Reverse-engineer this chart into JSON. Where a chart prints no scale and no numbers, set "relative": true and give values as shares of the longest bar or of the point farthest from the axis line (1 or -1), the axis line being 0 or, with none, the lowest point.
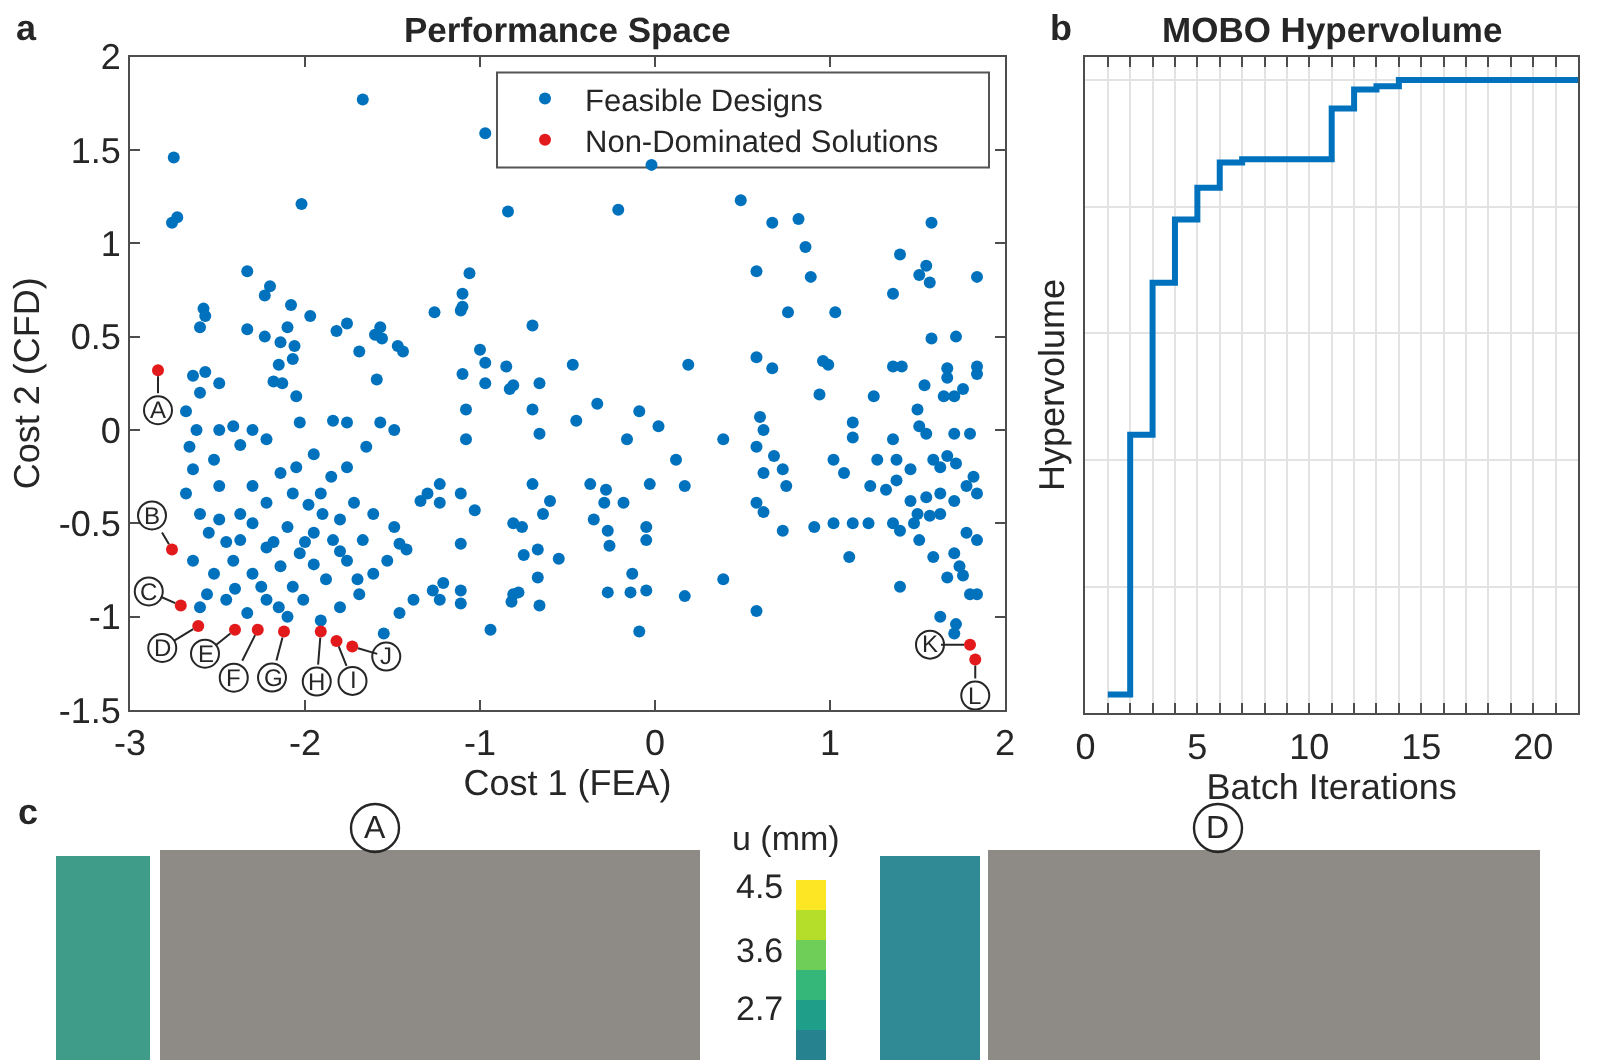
{
  "chart_data": [
    {
      "type": "scatter",
      "title": "Performance Space",
      "xlabel": "Cost 1 (FEA)",
      "ylabel": "Cost 2 (CFD)",
      "xlim": [
        -3,
        2
      ],
      "xticks": [
        -3,
        -2,
        -1,
        0,
        1,
        2
      ],
      "ylim": [
        -1.5,
        2
      ],
      "yticks": [
        -1.5,
        -1,
        -0.5,
        0,
        0.5,
        1,
        1.5,
        2
      ],
      "marker": "circle",
      "legend": "top right",
      "series": [
        {
          "name": "Feasible Designs",
          "color": "#0072bd",
          "x": [
            -1.67,
            -2.75,
            -2.76,
            -2.73,
            -2.02,
            -0.97,
            -0.84,
            -0.02,
            -0.21,
            0.49,
            0.67,
            0.82,
            0.86,
            0.58,
            0.89,
            1.03,
            0.76,
            1.58,
            1.4,
            1.55,
            1.51,
            1.57,
            1.36,
            1.84,
            1.72,
            1.58,
            -2.33,
            -2.2,
            -2.23,
            -1.06,
            -1.1,
            -1.11,
            -1.26,
            -2.58,
            -2.57,
            -2.6,
            -2.33,
            -2.08,
            -1.97,
            -2.1,
            -2.06,
            -2.23,
            -2.14,
            -1.82,
            -1.76,
            -1.69,
            -1.57,
            -1.6,
            -1.56,
            -1.47,
            -1.44,
            -2.07,
            -2.15,
            -2.18,
            -2.13,
            -2.64,
            -2.57,
            -0.7,
            -1.0,
            -0.97,
            -0.85,
            -1.1,
            -0.97,
            -0.83,
            -1.59,
            -2.05,
            -1.1,
            -0.47,
            0.19,
            0.58,
            0.67,
            0.96,
            0.99,
            1.36,
            1.41,
            1.67,
            1.84,
            1.84,
            1.67,
            1.54,
            1.76,
            1.65,
            1.71,
            1.25,
            0.94,
            -0.81,
            -0.66,
            -2.6,
            -2.49,
            -2.68,
            -2.62,
            -2.49,
            -2.41,
            -2.3,
            -2.37,
            -2.66,
            -2.52,
            -2.64,
            -2.22,
            -2.03,
            -1.84,
            -1.76,
            -1.57,
            -1.49,
            -1.65,
            -1.95,
            -1.76,
            -2.14,
            -2.3,
            -2.49,
            -2.68,
            -2.6,
            -2.49,
            -2.37,
            -2.22,
            -2.07,
            -1.91,
            -1.72,
            -1.61,
            -1.49,
            -1.46,
            -1.42,
            -1.53,
            -1.61,
            -1.69,
            -1.8,
            -1.91,
            -2.01,
            -2.1,
            -2.22,
            -2.33,
            -2.45,
            -2.56,
            -2.52,
            -2.64,
            -2.41,
            -2.3,
            -2.14,
            -2.03,
            -1.95,
            -1.84,
            -1.76,
            -1.88,
            -2.07,
            -2.22,
            -2.37,
            -2.1,
            -1.8,
            -1.67,
            -1.38,
            -1.46,
            -1.55,
            -1.34,
            -1.3,
            -1.23,
            -1.11,
            -1.03,
            -1.23,
            -1.27,
            -1.21,
            -1.11,
            -1.11,
            -1.23,
            -0.94,
            -0.81,
            -0.76,
            -0.81,
            -1.11,
            -2.0,
            -1.95,
            -2.25,
            -2.45,
            -2.55,
            -1.9,
            -2.15,
            -2.4,
            -1.7,
            -2.3,
            -1.85,
            -2.05,
            -2.6,
            -1.98,
            -2.18,
            -1.8,
            -1.08,
            -1.08,
            -0.7,
            -0.66,
            -0.45,
            -0.33,
            -0.16,
            -0.09,
            0.02,
            -0.7,
            -0.6,
            -0.64,
            -0.75,
            -0.67,
            -0.55,
            -0.67,
            -0.78,
            -0.82,
            -0.66,
            -0.37,
            -0.28,
            -0.29,
            -0.18,
            -0.35,
            -0.27,
            -0.26,
            -0.05,
            -0.05,
            -0.03,
            -0.27,
            -0.14,
            -0.13,
            -0.05,
            -0.09,
            0.17,
            0.39,
            0.39,
            0.12,
            0.17,
            0.58,
            0.58,
            0.62,
            0.73,
            0.6,
            0.62,
            0.58,
            0.68,
            0.73,
            0.75,
            0.62,
            0.91,
            1.02,
            1.11,
            1.13,
            1.22,
            1.02,
            1.08,
            1.13,
            1.13,
            1.23,
            1.27,
            1.32,
            1.36,
            1.36,
            1.4,
            1.38,
            1.46,
            1.5,
            1.51,
            1.55,
            1.59,
            1.71,
            1.8,
            1.72,
            1.78,
            1.46,
            1.55,
            1.63,
            1.71,
            1.4,
            1.48,
            1.51,
            1.59,
            1.71,
            1.74,
            1.84,
            1.78,
            1.8,
            1.84,
            1.72,
            1.71,
            1.63,
            1.67,
            1.76,
            1.63,
            1.57,
            1.5,
            1.38,
            1.84,
            1.82,
            1.67,
            1.63
          ],
          "values": [
            1.77,
            1.46,
            1.11,
            1.14,
            1.21,
            1.59,
            1.17,
            1.42,
            1.18,
            1.23,
            1.11,
            1.13,
            0.98,
            0.85,
            0.82,
            0.63,
            0.63,
            1.11,
            0.94,
            0.88,
            0.83,
            0.79,
            0.73,
            0.82,
            0.5,
            0.49,
            0.85,
            0.77,
            0.72,
            0.84,
            0.73,
            0.64,
            0.63,
            0.65,
            0.61,
            0.55,
            0.54,
            0.67,
            0.61,
            0.55,
            0.45,
            0.5,
            0.47,
            0.53,
            0.57,
            0.42,
            0.55,
            0.51,
            0.49,
            0.45,
            0.42,
            0.38,
            0.35,
            0.26,
            0.25,
            0.29,
            0.31,
            0.56,
            0.43,
            0.36,
            0.34,
            0.3,
            0.25,
            0.22,
            0.27,
            0.18,
            0.66,
            0.35,
            0.35,
            0.39,
            0.33,
            0.37,
            0.35,
            0.34,
            0.34,
            0.33,
            0.34,
            0.3,
            0.28,
            0.24,
            0.22,
            0.18,
            0.18,
            0.18,
            0.19,
            0.24,
            0.25,
            0.2,
            0.25,
            0.1,
            0.0,
            0.0,
            0.02,
            0.0,
            -0.08,
            -0.09,
            -0.16,
            -0.21,
            -0.05,
            0.04,
            0.05,
            0.04,
            0.04,
            0.0,
            -0.09,
            -0.13,
            -0.2,
            -0.23,
            -0.3,
            -0.3,
            -0.34,
            -0.45,
            -0.48,
            -0.45,
            -0.39,
            -0.34,
            -0.34,
            -0.39,
            -0.45,
            -0.52,
            -0.61,
            -0.64,
            -0.7,
            -0.77,
            -0.88,
            -0.95,
            -1.02,
            -0.91,
            -1.0,
            -0.91,
            -0.98,
            -0.91,
            -0.88,
            -0.77,
            -0.7,
            -0.7,
            -0.77,
            -0.73,
            -0.66,
            -0.55,
            -0.59,
            -0.7,
            -0.8,
            -0.84,
            -0.63,
            -0.59,
            -0.52,
            -0.48,
            -0.59,
            -0.91,
            -0.98,
            -1.09,
            -0.38,
            -0.34,
            -0.39,
            -0.34,
            -0.43,
            -0.29,
            -0.86,
            -0.82,
            -0.86,
            -0.93,
            -0.91,
            -1.07,
            -0.5,
            -0.52,
            -0.88,
            -0.61,
            -0.6,
            -0.72,
            -0.84,
            -0.6,
            -0.55,
            -0.45,
            -0.95,
            -0.85,
            -0.8,
            -0.5,
            -0.25,
            -0.2,
            -0.95,
            -0.4,
            -0.6,
            -0.65,
            0.11,
            -0.05,
            0.11,
            -0.02,
            0.05,
            0.14,
            -0.05,
            0.1,
            0.02,
            -0.29,
            -0.38,
            -0.45,
            -0.67,
            -0.64,
            -0.69,
            -0.79,
            -0.87,
            -0.92,
            -0.94,
            -0.29,
            -0.32,
            -0.39,
            -0.39,
            -0.48,
            -0.54,
            -0.62,
            -0.52,
            -0.59,
            -0.29,
            -0.87,
            -0.87,
            -0.77,
            -0.86,
            -1.08,
            -0.89,
            -0.8,
            -0.05,
            -0.16,
            -0.3,
            -0.97,
            -0.39,
            -0.44,
            -0.54,
            0.07,
            0.0,
            -0.09,
            -0.14,
            -0.21,
            -0.3,
            -0.23,
            -0.52,
            -0.5,
            -0.68,
            -0.5,
            -0.5,
            -0.16,
            -0.23,
            -0.04,
            0.04,
            -0.3,
            -0.16,
            -0.32,
            -0.05,
            -0.5,
            -0.84,
            -0.27,
            -0.21,
            0.11,
            0.02,
            -0.02,
            -0.16,
            -0.02,
            -0.02,
            -0.18,
            -0.3,
            -0.38,
            -0.36,
            -0.34,
            -0.38,
            -0.54,
            -0.5,
            -0.59,
            -0.68,
            -0.66,
            -0.73,
            -0.59,
            -0.55,
            -0.88,
            -0.88,
            -1.04,
            -1.09,
            -1.0,
            -0.79,
            -0.78,
            -0.45,
            -0.46,
            -0.45,
            -0.16,
            -0.34,
            -0.25,
            -0.14,
            -0.2
          ]
        },
        {
          "name": "Non-Dominated Solutions",
          "color": "#e31a1c",
          "x": [
            -2.84,
            -2.76,
            -2.71,
            -2.61,
            -2.4,
            -2.27,
            -2.12,
            -1.91,
            -1.82,
            -1.73,
            1.8,
            1.83
          ],
          "values": [
            0.32,
            -0.64,
            -0.94,
            -1.05,
            -1.07,
            -1.07,
            -1.08,
            -1.08,
            -1.13,
            -1.16,
            -1.15,
            -1.23
          ]
        }
      ],
      "annotations": [
        "a",
        {
          "text": "A",
          "x": -2.84,
          "y": 0.32
        },
        {
          "text": "B",
          "x": -2.76,
          "y": -0.64
        },
        {
          "text": "C",
          "x": -2.71,
          "y": -0.94
        },
        {
          "text": "D",
          "x": -2.61,
          "y": -1.05
        },
        {
          "text": "E",
          "x": -2.4,
          "y": -1.07
        },
        {
          "text": "F",
          "x": -2.27,
          "y": -1.07
        },
        {
          "text": "G",
          "x": -2.12,
          "y": -1.08
        },
        {
          "text": "H",
          "x": -1.91,
          "y": -1.08
        },
        {
          "text": "I",
          "x": -1.82,
          "y": -1.13
        },
        {
          "text": "J",
          "x": -1.73,
          "y": -1.16
        },
        {
          "text": "K",
          "x": 1.8,
          "y": -1.15
        },
        {
          "text": "L",
          "x": 1.83,
          "y": -1.23
        }
      ]
    },
    {
      "type": "step",
      "title": "MOBO Hypervolume",
      "xlabel": "Batch Iterations",
      "ylabel": "Hypervolume",
      "relative": true,
      "grid": true,
      "color": "#0072bd",
      "x": [
        1,
        2,
        3,
        4,
        5,
        6,
        7,
        8,
        9,
        10,
        11,
        12,
        13,
        14,
        15,
        16,
        17,
        18,
        19,
        20,
        21,
        22
      ],
      "values": [
        0.03,
        0.44,
        0.68,
        0.78,
        0.83,
        0.87,
        0.875,
        0.875,
        0.875,
        0.875,
        0.955,
        0.985,
        0.99,
        1,
        1,
        1,
        1,
        1,
        1,
        1,
        1,
        1
      ],
      "xlim": [
        0,
        22
      ],
      "xticks": [
        0,
        {
          "value": 1,
          "label": null
        },
        {
          "value": 2,
          "label": null
        },
        {
          "value": 3,
          "label": null
        },
        {
          "value": 4,
          "label": null
        },
        5,
        {
          "value": 6,
          "label": null
        },
        {
          "value": 7,
          "label": null
        },
        {
          "value": 8,
          "label": null
        },
        {
          "value": 9,
          "label": null
        },
        10,
        {
          "value": 11,
          "label": null
        },
        {
          "value": 12,
          "label": null
        },
        {
          "value": 13,
          "label": null
        },
        {
          "value": 14,
          "label": null
        },
        15,
        {
          "value": 16,
          "label": null
        },
        {
          "value": 17,
          "label": null
        },
        {
          "value": 18,
          "label": null
        },
        {
          "value": 19,
          "label": null
        },
        20,
        {
          "value": 21,
          "label": null
        }
      ],
      "annotations": [
        "b"
      ]
    },
    {
      "type": "other",
      "annotations": [
        "c",
        "A",
        "u (mm)",
        "4.5",
        "3.6",
        "2.7",
        "D"
      ]
    }
  ]
}
